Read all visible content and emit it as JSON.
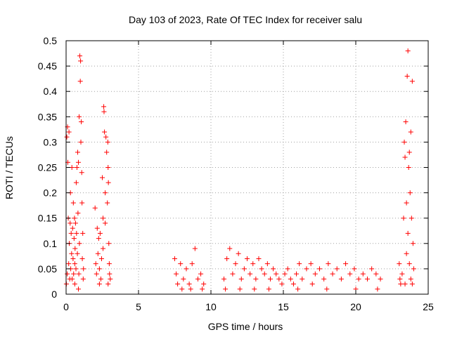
{
  "chart_data": {
    "type": "scatter",
    "title": "Day 103 of 2023, Rate Of TEC Index for receiver salu",
    "xlabel": "GPS time / hours",
    "ylabel": "ROTI / TECUs",
    "xlim": [
      0,
      25
    ],
    "ylim": [
      0,
      0.5
    ],
    "xticks": [
      0,
      5,
      10,
      15,
      20,
      25
    ],
    "yticks": [
      0,
      0.05,
      0.1,
      0.15,
      0.2,
      0.25,
      0.3,
      0.35,
      0.4,
      0.45,
      0.5
    ],
    "xtick_labels": [
      "0",
      "5",
      "10",
      "15",
      "20",
      "25"
    ],
    "ytick_labels": [
      "0",
      "0.05",
      "0.1",
      "0.15",
      "0.2",
      "0.25",
      "0.3",
      "0.35",
      "0.4",
      "0.45",
      "0.5"
    ],
    "grid": true,
    "marker": "plus",
    "color": "#ff0000",
    "series": [
      {
        "points": [
          [
            0.02,
            0.02
          ],
          [
            0.05,
            0.31
          ],
          [
            0.08,
            0.04
          ],
          [
            0.1,
            0.33
          ],
          [
            0.12,
            0.26
          ],
          [
            0.15,
            0.15
          ],
          [
            0.18,
            0.06
          ],
          [
            0.2,
            0.32
          ],
          [
            0.22,
            0.1
          ],
          [
            0.25,
            0.03
          ],
          [
            0.28,
            0.14
          ],
          [
            0.3,
            0.2
          ],
          [
            0.32,
            0.05
          ],
          [
            0.35,
            0.12
          ],
          [
            0.38,
            0.08
          ],
          [
            0.4,
            0.25
          ],
          [
            0.42,
            0.03
          ],
          [
            0.45,
            0.13
          ],
          [
            0.48,
            0.07
          ],
          [
            0.5,
            0.18
          ],
          [
            0.52,
            0.04
          ],
          [
            0.55,
            0.11
          ],
          [
            0.58,
            0.15
          ],
          [
            0.6,
            0.06
          ],
          [
            0.62,
            0.09
          ],
          [
            0.65,
            0.14
          ],
          [
            0.68,
            0.05
          ],
          [
            0.7,
            0.22
          ],
          [
            0.72,
            0.12
          ],
          [
            0.75,
            0.25
          ],
          [
            0.78,
            0.08
          ],
          [
            0.8,
            0.28
          ],
          [
            0.82,
            0.16
          ],
          [
            0.85,
            0.26
          ],
          [
            0.88,
            0.04
          ],
          [
            0.9,
            0.35
          ],
          [
            0.92,
            0.1
          ],
          [
            0.95,
            0.47
          ],
          [
            0.98,
            0.42
          ],
          [
            1.0,
            0.46
          ],
          [
            1.02,
            0.3
          ],
          [
            1.05,
            0.34
          ],
          [
            1.08,
            0.24
          ],
          [
            1.1,
            0.18
          ],
          [
            1.12,
            0.07
          ],
          [
            1.15,
            0.12
          ],
          [
            1.18,
            0.03
          ],
          [
            1.2,
            0.05
          ],
          [
            0.85,
            0.01
          ],
          [
            0.6,
            0.02
          ],
          [
            2.0,
            0.17
          ],
          [
            2.05,
            0.06
          ],
          [
            2.1,
            0.04
          ],
          [
            2.15,
            0.13
          ],
          [
            2.2,
            0.08
          ],
          [
            2.25,
            0.11
          ],
          [
            2.3,
            0.05
          ],
          [
            2.35,
            0.12
          ],
          [
            2.4,
            0.03
          ],
          [
            2.45,
            0.07
          ],
          [
            2.5,
            0.23
          ],
          [
            2.55,
            0.15
          ],
          [
            2.6,
            0.37
          ],
          [
            2.62,
            0.36
          ],
          [
            2.65,
            0.32
          ],
          [
            2.7,
            0.2
          ],
          [
            2.75,
            0.31
          ],
          [
            2.8,
            0.28
          ],
          [
            2.85,
            0.18
          ],
          [
            2.88,
            0.3
          ],
          [
            2.9,
            0.25
          ],
          [
            2.92,
            0.22
          ],
          [
            2.95,
            0.1
          ],
          [
            2.98,
            0.06
          ],
          [
            3.0,
            0.04
          ],
          [
            2.7,
            0.14
          ],
          [
            2.55,
            0.09
          ],
          [
            2.3,
            0.02
          ],
          [
            2.9,
            0.02
          ],
          [
            3.05,
            0.03
          ],
          [
            7.5,
            0.07
          ],
          [
            7.7,
            0.02
          ],
          [
            7.9,
            0.06
          ],
          [
            8.1,
            0.03
          ],
          [
            8.3,
            0.05
          ],
          [
            8.5,
            0.02
          ],
          [
            8.7,
            0.06
          ],
          [
            8.9,
            0.09
          ],
          [
            9.1,
            0.03
          ],
          [
            9.3,
            0.04
          ],
          [
            9.5,
            0.02
          ],
          [
            8.0,
            0.01
          ],
          [
            8.6,
            0.01
          ],
          [
            9.4,
            0.01
          ],
          [
            7.6,
            0.04
          ],
          [
            10.9,
            0.03
          ],
          [
            11.1,
            0.07
          ],
          [
            11.3,
            0.09
          ],
          [
            11.5,
            0.04
          ],
          [
            11.7,
            0.06
          ],
          [
            11.9,
            0.08
          ],
          [
            12.1,
            0.03
          ],
          [
            12.3,
            0.05
          ],
          [
            12.5,
            0.07
          ],
          [
            12.7,
            0.04
          ],
          [
            12.9,
            0.06
          ],
          [
            13.1,
            0.03
          ],
          [
            13.3,
            0.07
          ],
          [
            13.5,
            0.05
          ],
          [
            13.7,
            0.04
          ],
          [
            13.9,
            0.06
          ],
          [
            14.1,
            0.03
          ],
          [
            14.3,
            0.05
          ],
          [
            14.5,
            0.04
          ],
          [
            14.7,
            0.03
          ],
          [
            14.9,
            0.02
          ],
          [
            11.0,
            0.01
          ],
          [
            12.0,
            0.01
          ],
          [
            13.0,
            0.01
          ],
          [
            14.0,
            0.01
          ],
          [
            15.1,
            0.04
          ],
          [
            15.3,
            0.05
          ],
          [
            15.5,
            0.03
          ],
          [
            15.7,
            0.02
          ],
          [
            15.9,
            0.04
          ],
          [
            16.1,
            0.06
          ],
          [
            16.3,
            0.03
          ],
          [
            16.6,
            0.05
          ],
          [
            16.9,
            0.06
          ],
          [
            17.2,
            0.04
          ],
          [
            17.5,
            0.05
          ],
          [
            17.8,
            0.03
          ],
          [
            18.1,
            0.06
          ],
          [
            18.4,
            0.04
          ],
          [
            18.7,
            0.05
          ],
          [
            19.0,
            0.03
          ],
          [
            19.3,
            0.06
          ],
          [
            19.6,
            0.04
          ],
          [
            19.9,
            0.05
          ],
          [
            20.2,
            0.03
          ],
          [
            20.5,
            0.04
          ],
          [
            20.8,
            0.03
          ],
          [
            21.1,
            0.05
          ],
          [
            21.4,
            0.04
          ],
          [
            21.7,
            0.03
          ],
          [
            16.0,
            0.01
          ],
          [
            18.0,
            0.01
          ],
          [
            20.0,
            0.01
          ],
          [
            21.5,
            0.01
          ],
          [
            17.0,
            0.02
          ],
          [
            23.0,
            0.06
          ],
          [
            23.05,
            0.03
          ],
          [
            23.1,
            0.02
          ],
          [
            23.2,
            0.04
          ],
          [
            23.3,
            0.15
          ],
          [
            23.35,
            0.3
          ],
          [
            23.4,
            0.27
          ],
          [
            23.45,
            0.34
          ],
          [
            23.5,
            0.18
          ],
          [
            23.55,
            0.43
          ],
          [
            23.6,
            0.48
          ],
          [
            23.65,
            0.25
          ],
          [
            23.7,
            0.28
          ],
          [
            23.75,
            0.2
          ],
          [
            23.8,
            0.32
          ],
          [
            23.85,
            0.15
          ],
          [
            23.9,
            0.42
          ],
          [
            23.95,
            0.1
          ],
          [
            24.0,
            0.05
          ],
          [
            23.5,
            0.08
          ],
          [
            23.6,
            0.12
          ],
          [
            23.7,
            0.06
          ],
          [
            23.8,
            0.03
          ],
          [
            23.9,
            0.02
          ],
          [
            23.4,
            0.02
          ]
        ]
      }
    ]
  }
}
